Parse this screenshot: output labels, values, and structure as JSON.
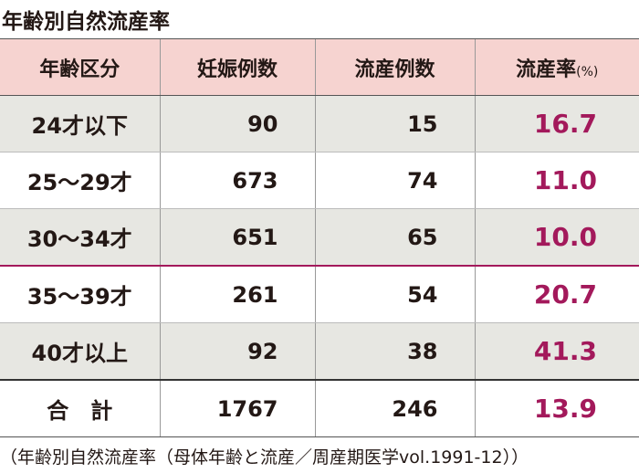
{
  "title": "年齢別自然流産率",
  "table": {
    "header": [
      "年齢区分",
      "妊娠例数",
      "流産例数",
      "流産率"
    ],
    "header_unit": "(%)",
    "rows": [
      [
        "24才以下",
        "90",
        "15",
        "16.7"
      ],
      [
        "25～29才",
        "673",
        "74",
        "11.0"
      ],
      [
        "30～34才",
        "651",
        "65",
        "10.0"
      ],
      [
        "35～39才",
        "261",
        "54",
        "20.7"
      ],
      [
        "40才以上",
        "92",
        "38",
        "41.3"
      ]
    ],
    "total": [
      "合　計",
      "1767",
      "246",
      "13.9"
    ]
  },
  "source": "（年齢別自然流産率（母体年齢と流産／周産期医学vol.1991-12））"
}
